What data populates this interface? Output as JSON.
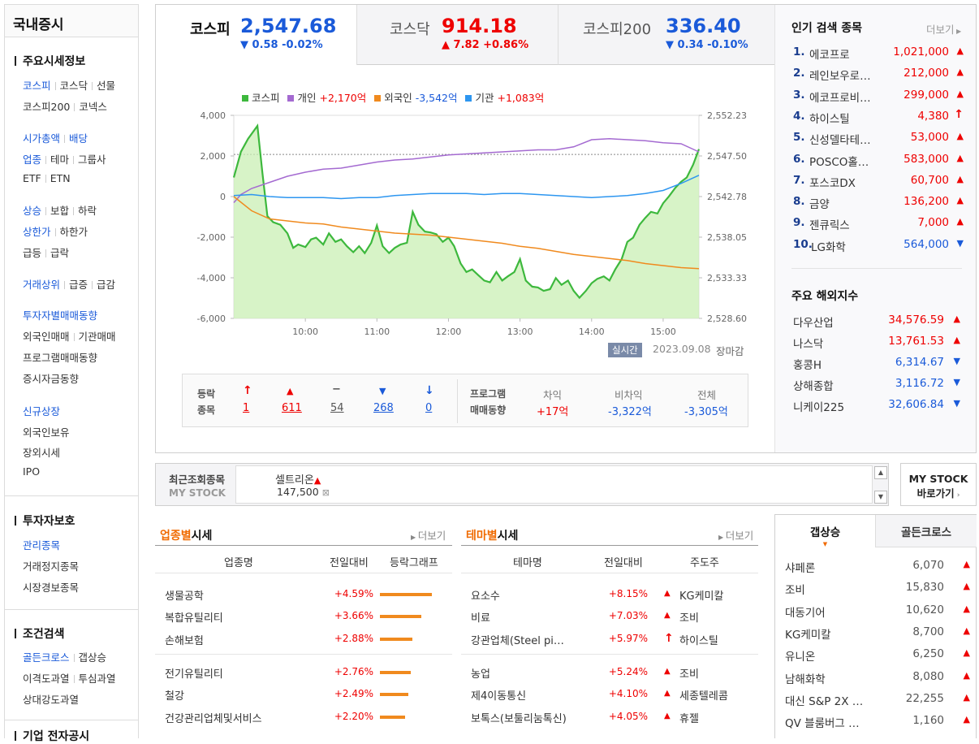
{
  "sidebar": {
    "title": "국내증시",
    "market_info_head": "주요시세정보",
    "kospi": "코스피",
    "kosdaq": "코스닥",
    "futures": "선물",
    "kospi200": "코스피200",
    "konex": "코넥스",
    "market_cap": "시가총액",
    "dividend": "배당",
    "sector": "업종",
    "theme": "테마",
    "group": "그룹사",
    "etf": "ETF",
    "etn": "ETN",
    "rise": "상승",
    "flat": "보합",
    "fall": "하락",
    "upper_limit": "상한가",
    "lower_limit": "하한가",
    "surge": "급등",
    "plunge": "급락",
    "volume_top": "거래상위",
    "vol_inc": "급증",
    "vol_dec": "급감",
    "investor_trend": "투자자별매매동향",
    "foreign_trade": "외국인매매",
    "inst_trade": "기관매매",
    "program_trend": "프로그램매매동향",
    "deposit_trend": "증시자금동향",
    "new_listing": "신규상장",
    "foreign_holding": "외국인보유",
    "offhours": "장외시세",
    "ipo": "IPO",
    "protection_head": "투자자보호",
    "managed": "관리종목",
    "halted": "거래정지종목",
    "warning": "시장경보종목",
    "search_head": "조건검색",
    "golden": "골든크로스",
    "gap_up": "갭상승",
    "disparity": "이격도과열",
    "psycho": "투심과열",
    "rsi": "상대강도과열",
    "disclosure_head": "기업 전자공시"
  },
  "indices": [
    {
      "name": "코스피",
      "value": "2,547.68",
      "change": "▼ 0.58 -0.02%",
      "dir": "down"
    },
    {
      "name": "코스닥",
      "value": "914.18",
      "change": "▲ 7.82 +0.86%",
      "dir": "up"
    },
    {
      "name": "코스피200",
      "value": "336.40",
      "change": "▼ 0.34 -0.10%",
      "dir": "down"
    }
  ],
  "legend": {
    "kospi": "코스피",
    "indiv": "개인",
    "indiv_val": "+2,170억",
    "foreign": "외국인",
    "foreign_val": "-3,542억",
    "inst": "기관",
    "inst_val": "+1,083억"
  },
  "chart_data": {
    "type": "line",
    "x_ticks": [
      "10:00",
      "11:00",
      "12:00",
      "13:00",
      "14:00",
      "15:00"
    ],
    "y_left_ticks": [
      "4,000",
      "2,000",
      "0",
      "-2,000",
      "-4,000",
      "-6,000"
    ],
    "y_right_ticks": [
      "2,552.23",
      "2,547.50",
      "2,542.78",
      "2,538.05",
      "2,533.33",
      "2,528.60"
    ],
    "ylim_left": [
      -6000,
      4000
    ],
    "ylim_right": [
      2528.6,
      2552.23
    ],
    "reference_line": 2547.68,
    "x_range_hours": [
      9.0,
      15.5
    ],
    "series": [
      {
        "name": "코스피",
        "axis": "right",
        "color": "#3db83d",
        "fill": true,
        "x": [
          9.0,
          9.1,
          9.2,
          9.33,
          9.4,
          9.47,
          9.55,
          9.65,
          9.75,
          9.83,
          9.9,
          10.0,
          10.08,
          10.15,
          10.25,
          10.33,
          10.42,
          10.5,
          10.58,
          10.67,
          10.75,
          10.83,
          10.92,
          11.0,
          11.08,
          11.17,
          11.25,
          11.33,
          11.42,
          11.5,
          11.58,
          11.67,
          11.75,
          11.83,
          11.92,
          12.0,
          12.08,
          12.17,
          12.25,
          12.33,
          12.42,
          12.5,
          12.58,
          12.67,
          12.75,
          12.83,
          12.92,
          13.0,
          13.08,
          13.17,
          13.25,
          13.33,
          13.42,
          13.5,
          13.58,
          13.67,
          13.75,
          13.83,
          13.92,
          14.0,
          14.08,
          14.17,
          14.25,
          14.33,
          14.42,
          14.5,
          14.58,
          14.67,
          14.75,
          14.83,
          14.92,
          15.0,
          15.08,
          15.17,
          15.25,
          15.33,
          15.42,
          15.5
        ],
        "y": [
          2545.0,
          2548.0,
          2549.5,
          2551.0,
          2545.5,
          2540.5,
          2539.8,
          2539.5,
          2538.5,
          2536.8,
          2537.2,
          2536.9,
          2537.8,
          2538.0,
          2537.2,
          2538.5,
          2537.5,
          2537.8,
          2537.0,
          2536.3,
          2537.0,
          2536.2,
          2537.4,
          2539.4,
          2537.0,
          2536.2,
          2536.8,
          2537.2,
          2537.4,
          2541.0,
          2539.5,
          2538.7,
          2538.6,
          2538.4,
          2537.5,
          2538.0,
          2537.0,
          2535.0,
          2534.0,
          2534.3,
          2533.6,
          2533.0,
          2532.8,
          2534.0,
          2533.0,
          2533.5,
          2534.0,
          2535.5,
          2533.0,
          2532.3,
          2532.2,
          2531.8,
          2532.0,
          2533.3,
          2532.5,
          2533.0,
          2531.8,
          2531.0,
          2531.8,
          2532.7,
          2533.2,
          2533.5,
          2533.0,
          2534.3,
          2535.5,
          2537.5,
          2538.0,
          2539.5,
          2540.3,
          2541.0,
          2540.8,
          2542.0,
          2542.8,
          2543.8,
          2544.5,
          2545.0,
          2546.5,
          2548.3
        ]
      },
      {
        "name": "개인",
        "axis": "left",
        "color": "#a46ad1",
        "x": [
          9.0,
          9.1,
          9.25,
          9.5,
          9.75,
          10.0,
          10.25,
          10.5,
          10.75,
          11.0,
          11.25,
          11.5,
          11.75,
          12.0,
          12.25,
          12.5,
          12.75,
          13.0,
          13.25,
          13.5,
          13.75,
          14.0,
          14.25,
          14.5,
          14.75,
          15.0,
          15.25,
          15.5
        ],
        "y": [
          -300,
          100,
          400,
          700,
          1000,
          1200,
          1350,
          1400,
          1550,
          1700,
          1800,
          1850,
          1950,
          2050,
          2100,
          2150,
          2200,
          2250,
          2300,
          2300,
          2450,
          2800,
          2850,
          2800,
          2750,
          2650,
          2600,
          2200
        ]
      },
      {
        "name": "외국인",
        "axis": "left",
        "color": "#f08a1e",
        "x": [
          9.0,
          9.25,
          9.5,
          9.75,
          10.0,
          10.25,
          10.5,
          10.75,
          11.0,
          11.25,
          11.5,
          11.75,
          12.0,
          12.25,
          12.5,
          12.75,
          13.0,
          13.25,
          13.5,
          13.75,
          14.0,
          14.25,
          14.5,
          14.75,
          15.0,
          15.25,
          15.5
        ],
        "y": [
          0,
          -700,
          -1100,
          -1200,
          -1300,
          -1350,
          -1500,
          -1600,
          -1700,
          -1800,
          -1850,
          -1900,
          -2000,
          -2100,
          -2200,
          -2300,
          -2450,
          -2550,
          -2700,
          -2850,
          -2950,
          -3050,
          -3150,
          -3300,
          -3400,
          -3500,
          -3550
        ]
      },
      {
        "name": "기관",
        "axis": "left",
        "color": "#2d96f0",
        "x": [
          9.0,
          9.25,
          9.5,
          9.75,
          10.0,
          10.25,
          10.5,
          10.75,
          11.0,
          11.25,
          11.5,
          11.75,
          12.0,
          12.25,
          12.5,
          12.75,
          13.0,
          13.25,
          13.5,
          13.75,
          14.0,
          14.25,
          14.5,
          14.75,
          15.0,
          15.25,
          15.5
        ],
        "y": [
          50,
          100,
          0,
          -50,
          -50,
          -50,
          -100,
          -50,
          -50,
          50,
          100,
          150,
          150,
          150,
          100,
          150,
          150,
          100,
          50,
          0,
          -50,
          0,
          50,
          150,
          300,
          650,
          1050
        ]
      }
    ]
  },
  "realtime_badge": "실시간",
  "timestamp": "2023.09.08",
  "market_status": "장마감",
  "stats": {
    "label1": "등락",
    "label2": "종목",
    "upper": "1",
    "rise": "611",
    "flat": "54",
    "fall": "268",
    "lower": "0",
    "prog_label1": "프로그램",
    "prog_label2": "매매동향",
    "arb_label": "차익",
    "arb_val": "+17억",
    "nonarb_label": "비차익",
    "nonarb_val": "-3,322억",
    "total_label": "전체",
    "total_val": "-3,305억"
  },
  "popular": {
    "title": "인기 검색 종목",
    "more": "더보기",
    "items": [
      {
        "rank": "1.",
        "name": "에코프로",
        "price": "1,021,000",
        "dir": "up"
      },
      {
        "rank": "2.",
        "name": "레인보우로…",
        "price": "212,000",
        "dir": "up"
      },
      {
        "rank": "3.",
        "name": "에코프로비…",
        "price": "299,000",
        "dir": "up"
      },
      {
        "rank": "4.",
        "name": "하이스틸",
        "price": "4,380",
        "dir": "upper"
      },
      {
        "rank": "5.",
        "name": "신성델타테…",
        "price": "53,000",
        "dir": "up"
      },
      {
        "rank": "6.",
        "name": "POSCO홀…",
        "price": "583,000",
        "dir": "up"
      },
      {
        "rank": "7.",
        "name": "포스코DX",
        "price": "60,700",
        "dir": "up"
      },
      {
        "rank": "8.",
        "name": "금양",
        "price": "136,200",
        "dir": "up"
      },
      {
        "rank": "9.",
        "name": "젠큐릭스",
        "price": "7,000",
        "dir": "up"
      },
      {
        "rank": "10.",
        "name": "LG화학",
        "price": "564,000",
        "dir": "down"
      }
    ]
  },
  "overseas": {
    "title": "주요 해외지수",
    "items": [
      {
        "name": "다우산업",
        "value": "34,576.59",
        "dir": "up"
      },
      {
        "name": "나스닥",
        "value": "13,761.53",
        "dir": "up"
      },
      {
        "name": "홍콩H",
        "value": "6,314.67",
        "dir": "down"
      },
      {
        "name": "상해종합",
        "value": "3,116.72",
        "dir": "down"
      },
      {
        "name": "니케이225",
        "value": "32,606.84",
        "dir": "down"
      }
    ]
  },
  "recent": {
    "label1": "최근조회종목",
    "label2": "MY STOCK",
    "stock_name": "셀트리온",
    "stock_price": "147,500",
    "mystock_btn1": "MY STOCK",
    "mystock_btn2": "바로가기"
  },
  "sector": {
    "title_a": "업종별",
    "title_b": "시세",
    "more": "더보기",
    "col1": "업종명",
    "col2": "전일대비",
    "col3": "등락그래프",
    "rows": [
      {
        "name": "생물공학",
        "pct": "+4.59%",
        "ratio": 1.0
      },
      {
        "name": "복합유틸리티",
        "pct": "+3.66%",
        "ratio": 0.8
      },
      {
        "name": "손해보험",
        "pct": "+2.88%",
        "ratio": 0.63
      },
      {
        "name": "전기유틸리티",
        "pct": "+2.76%",
        "ratio": 0.6
      },
      {
        "name": "철강",
        "pct": "+2.49%",
        "ratio": 0.54
      },
      {
        "name": "건강관리업체및서비스",
        "pct": "+2.20%",
        "ratio": 0.48
      }
    ]
  },
  "theme": {
    "title_a": "테마별",
    "title_b": "시세",
    "more": "더보기",
    "col1": "테마명",
    "col2": "전일대비",
    "col3": "주도주",
    "rows": [
      {
        "name": "요소수",
        "pct": "+8.15%",
        "lead": "KG케미칼",
        "dir": "up"
      },
      {
        "name": "비료",
        "pct": "+7.03%",
        "lead": "조비",
        "dir": "up"
      },
      {
        "name": "강관업체(Steel pi…",
        "pct": "+5.97%",
        "lead": "하이스틸",
        "dir": "upper"
      },
      {
        "name": "농업",
        "pct": "+5.24%",
        "lead": "조비",
        "dir": "up"
      },
      {
        "name": "제4이동통신",
        "pct": "+4.10%",
        "lead": "세종텔레콤",
        "dir": "up"
      },
      {
        "name": "보톡스(보툴리눔톡신)",
        "pct": "+4.05%",
        "lead": "휴젤",
        "dir": "up"
      }
    ]
  },
  "gap_panel": {
    "tab1": "갭상승",
    "tab2": "골든크로스",
    "items": [
      {
        "name": "샤페론",
        "price": "6,070"
      },
      {
        "name": "조비",
        "price": "15,830"
      },
      {
        "name": "대동기어",
        "price": "10,620"
      },
      {
        "name": "KG케미칼",
        "price": "8,700"
      },
      {
        "name": "유니온",
        "price": "6,250"
      },
      {
        "name": "남해화학",
        "price": "8,080"
      },
      {
        "name": "대신 S&P 2X …",
        "price": "22,255"
      },
      {
        "name": "QV 블룸버그 …",
        "price": "1,160"
      }
    ]
  }
}
